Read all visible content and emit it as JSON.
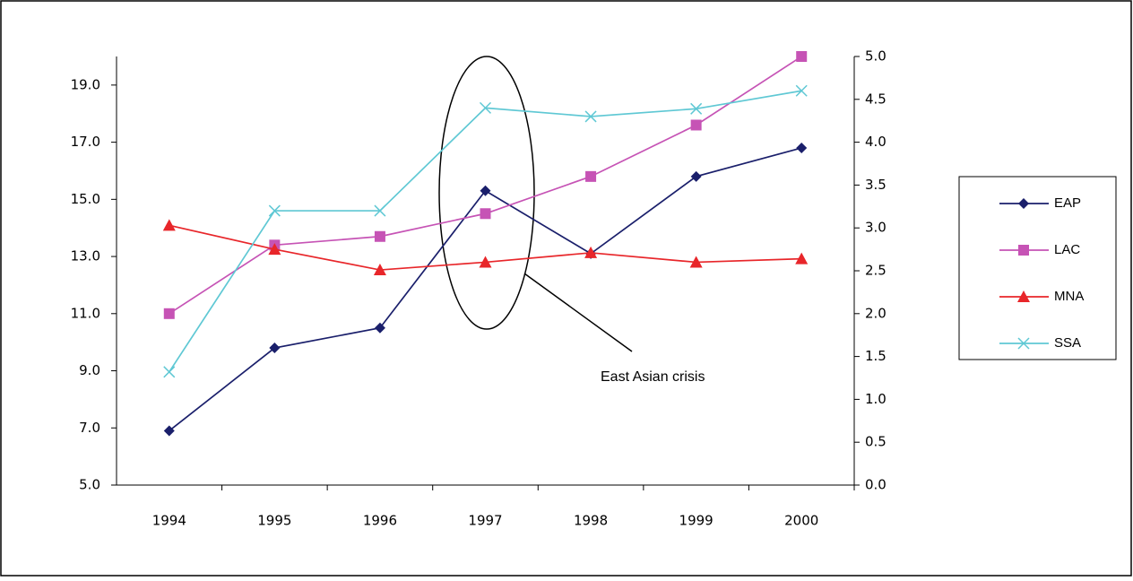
{
  "chart_data": {
    "type": "line",
    "categories": [
      "1994",
      "1995",
      "1996",
      "1997",
      "1998",
      "1999",
      "2000"
    ],
    "series": [
      {
        "name": "EAP",
        "color": "#1a1f6b",
        "marker": "diamond",
        "axis": "y",
        "values": [
          6.9,
          9.8,
          10.5,
          15.3,
          13.1,
          15.8,
          16.8
        ]
      },
      {
        "name": "LAC",
        "color": "#c653b5",
        "marker": "square",
        "axis": "y",
        "values": [
          11.0,
          13.4,
          13.7,
          14.5,
          15.8,
          17.6,
          20.0
        ]
      },
      {
        "name": "MNA",
        "color": "#e8262a",
        "marker": "triangle",
        "axis": "y2",
        "values": [
          3.03,
          2.75,
          2.51,
          2.6,
          2.71,
          2.6,
          2.64
        ]
      },
      {
        "name": "SSA",
        "color": "#5fc8d4",
        "marker": "x",
        "axis": "y2",
        "values": [
          1.32,
          3.2,
          3.2,
          4.4,
          4.3,
          4.39,
          4.6
        ]
      }
    ],
    "ylim": [
      5,
      20
    ],
    "yticks": [
      {
        "value": 5,
        "label": "5.0"
      },
      {
        "value": 7,
        "label": "7.0"
      },
      {
        "value": 9,
        "label": "9.0"
      },
      {
        "value": 11,
        "label": "11.0"
      },
      {
        "value": 13,
        "label": "13.0"
      },
      {
        "value": 15,
        "label": "15.0"
      },
      {
        "value": 17,
        "label": "17.0"
      },
      {
        "value": 19,
        "label": "19.0"
      }
    ],
    "y2lim": [
      0,
      5
    ],
    "y2ticks": [
      {
        "value": 0,
        "label": "0.0"
      },
      0.5,
      {
        "value": 1,
        "label": "1.0"
      },
      1.5,
      {
        "value": 2,
        "label": "2.0"
      },
      2.5,
      {
        "value": 3,
        "label": "3.0"
      },
      3.5,
      {
        "value": 4,
        "label": "4.0"
      },
      4.5,
      {
        "value": 5,
        "label": "5.0"
      }
    ],
    "annotation": "East Asian crisis",
    "legend": "right"
  }
}
